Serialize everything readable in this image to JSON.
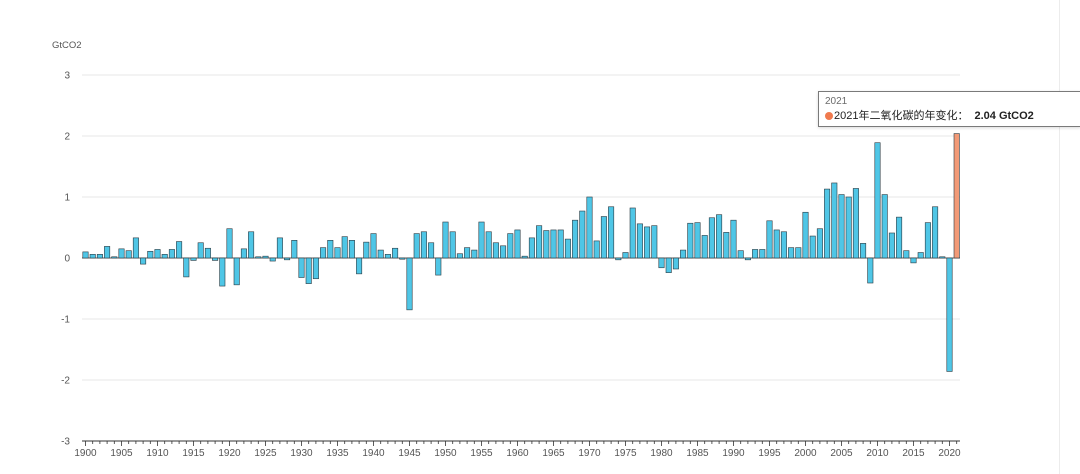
{
  "colors": {
    "bar": "#4fc6e6",
    "bar_stroke": "#2b3a42",
    "highlight": "#f29a77",
    "highlight_dot": "#f07a4e",
    "grid": "#e7e7e7",
    "axis": "#333333",
    "tick_text": "#555555"
  },
  "tooltip": {
    "year": "2021",
    "label": "2021年二氧化碳的年变化：",
    "value": "2.04 GtCO2"
  },
  "chart_data": {
    "type": "bar",
    "ylabel": "GtCO2",
    "ylim": [
      -3,
      3
    ],
    "yticks": [
      3,
      2,
      1,
      0,
      -1,
      -2,
      -3
    ],
    "xtick_labels": [
      "1900",
      "1905",
      "1910",
      "1915",
      "1920",
      "1925",
      "1930",
      "1935",
      "1940",
      "1945",
      "1950",
      "1955",
      "1960",
      "1965",
      "1970",
      "1975",
      "1980",
      "1985",
      "1990",
      "1995",
      "2000",
      "2005",
      "2010",
      "2015",
      "2020"
    ],
    "grid": true,
    "highlight_year": 2021,
    "x": [
      1900,
      1901,
      1902,
      1903,
      1904,
      1905,
      1906,
      1907,
      1908,
      1909,
      1910,
      1911,
      1912,
      1913,
      1914,
      1915,
      1916,
      1917,
      1918,
      1919,
      1920,
      1921,
      1922,
      1923,
      1924,
      1925,
      1926,
      1927,
      1928,
      1929,
      1930,
      1931,
      1932,
      1933,
      1934,
      1935,
      1936,
      1937,
      1938,
      1939,
      1940,
      1941,
      1942,
      1943,
      1944,
      1945,
      1946,
      1947,
      1948,
      1949,
      1950,
      1951,
      1952,
      1953,
      1954,
      1955,
      1956,
      1957,
      1958,
      1959,
      1960,
      1961,
      1962,
      1963,
      1964,
      1965,
      1966,
      1967,
      1968,
      1969,
      1970,
      1971,
      1972,
      1973,
      1974,
      1975,
      1976,
      1977,
      1978,
      1979,
      1980,
      1981,
      1982,
      1983,
      1984,
      1985,
      1986,
      1987,
      1988,
      1989,
      1990,
      1991,
      1992,
      1993,
      1994,
      1995,
      1996,
      1997,
      1998,
      1999,
      2000,
      2001,
      2002,
      2003,
      2004,
      2005,
      2006,
      2007,
      2008,
      2009,
      2010,
      2011,
      2012,
      2013,
      2014,
      2015,
      2016,
      2017,
      2018,
      2019,
      2020,
      2021
    ],
    "values": [
      0.1,
      0.06,
      0.06,
      0.19,
      0.02,
      0.15,
      0.12,
      0.33,
      -0.1,
      0.11,
      0.14,
      0.06,
      0.14,
      0.27,
      -0.31,
      -0.04,
      0.25,
      0.16,
      -0.04,
      -0.46,
      0.48,
      -0.44,
      0.15,
      0.43,
      0.02,
      0.03,
      -0.05,
      0.33,
      -0.03,
      0.29,
      -0.32,
      -0.42,
      -0.34,
      0.17,
      0.29,
      0.17,
      0.35,
      0.29,
      -0.26,
      0.26,
      0.4,
      0.13,
      0.06,
      0.16,
      -0.02,
      -0.85,
      0.4,
      0.43,
      0.25,
      -0.28,
      0.59,
      0.43,
      0.07,
      0.17,
      0.13,
      0.59,
      0.43,
      0.25,
      0.2,
      0.4,
      0.46,
      0.03,
      0.33,
      0.53,
      0.45,
      0.46,
      0.46,
      0.31,
      0.62,
      0.77,
      1.0,
      0.28,
      0.68,
      0.84,
      -0.03,
      0.09,
      0.82,
      0.56,
      0.51,
      0.53,
      -0.16,
      -0.24,
      -0.18,
      0.13,
      0.57,
      0.58,
      0.37,
      0.66,
      0.71,
      0.42,
      0.62,
      0.12,
      -0.03,
      0.14,
      0.14,
      0.61,
      0.46,
      0.43,
      0.17,
      0.17,
      0.75,
      0.36,
      0.48,
      1.13,
      1.23,
      1.04,
      1.0,
      1.14,
      0.24,
      -0.41,
      1.89,
      1.04,
      0.41,
      0.67,
      0.12,
      -0.08,
      0.09,
      0.58,
      0.84,
      0.02,
      -1.86,
      2.04
    ]
  }
}
